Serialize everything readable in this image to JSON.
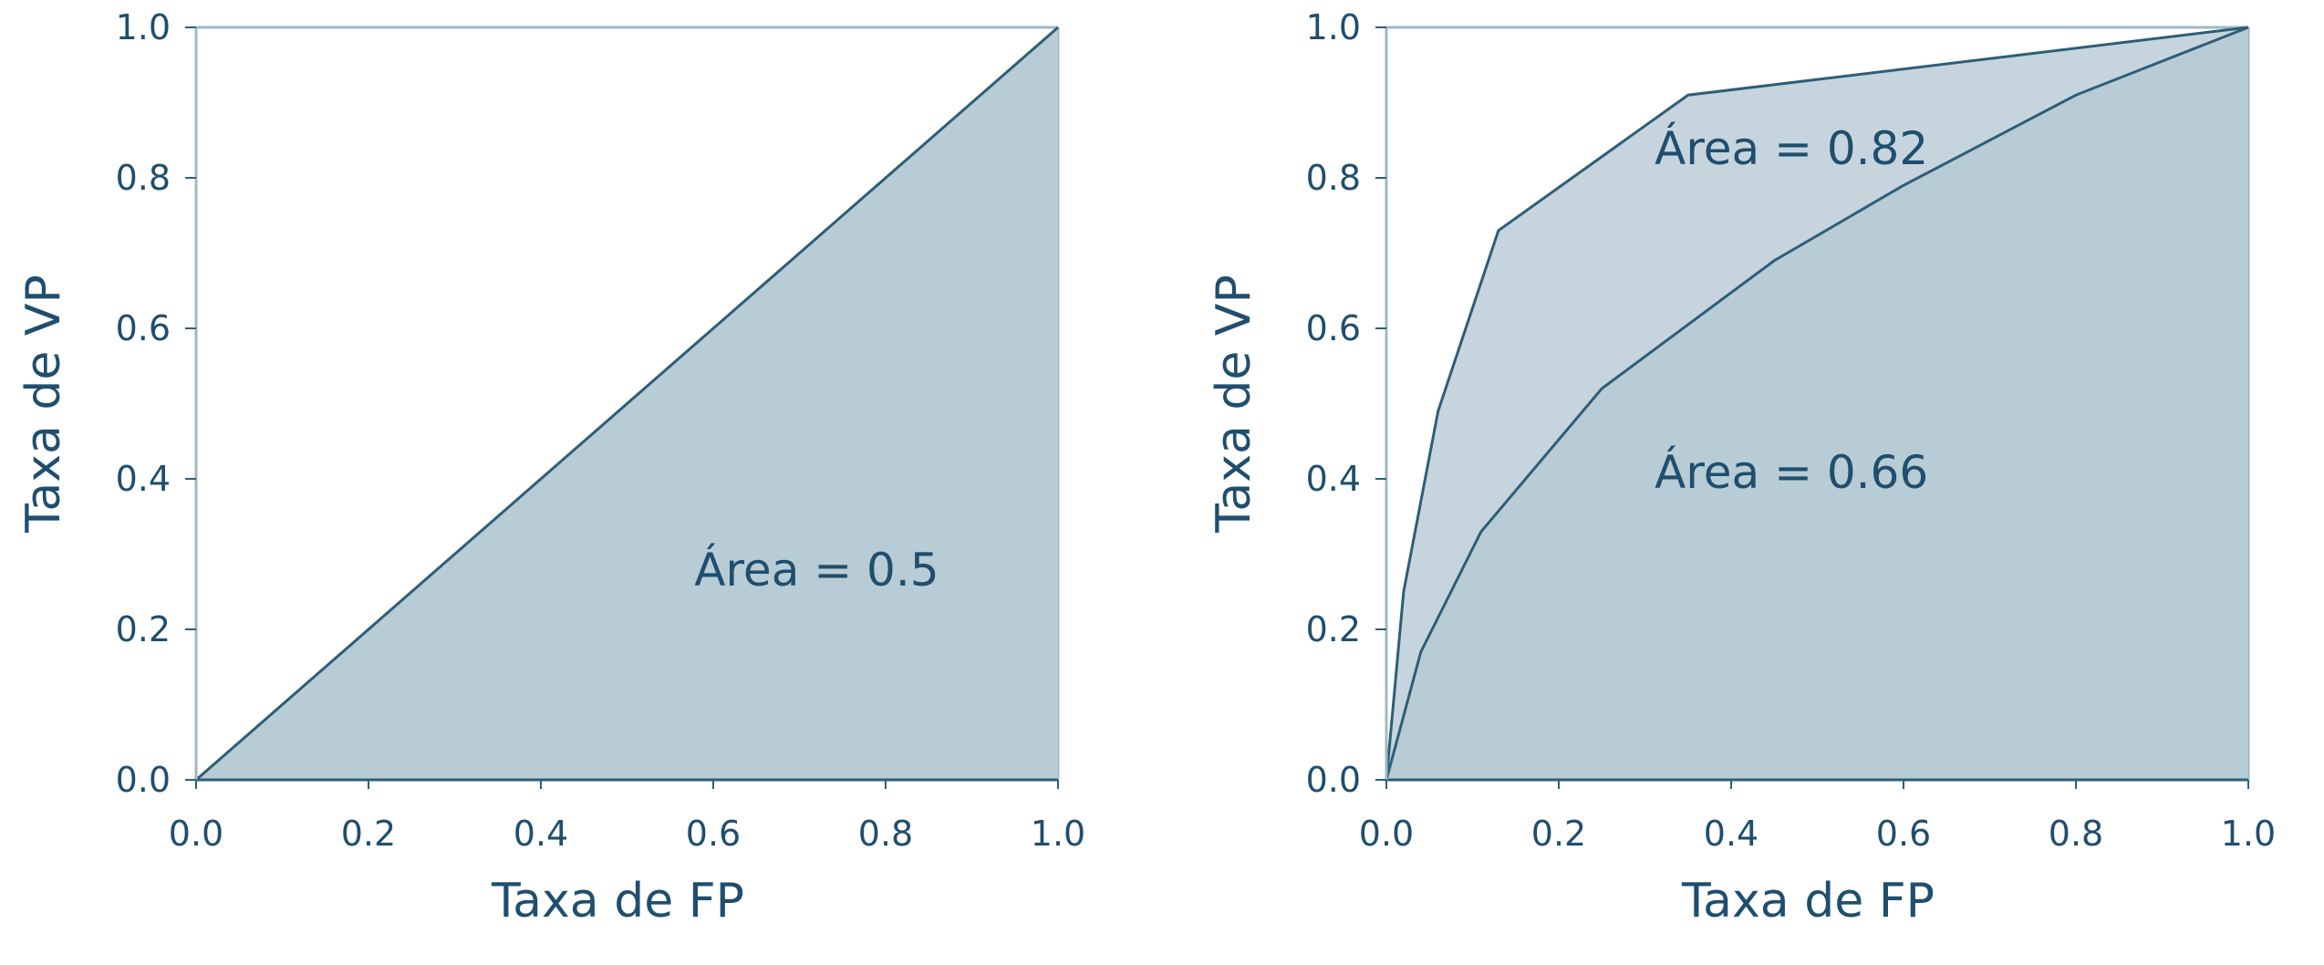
{
  "colors": {
    "axis": "#2e5e78",
    "text": "#1f4e6e",
    "fill_light": "#c6d5dd",
    "fill_dark": "#b8ccd6",
    "frame": "#9fb8c6"
  },
  "chart_data": [
    {
      "type": "area",
      "xlabel": "Taxa de FP",
      "ylabel": "Taxa de VP",
      "xlim": [
        0,
        1
      ],
      "ylim": [
        0,
        1
      ],
      "xticks": [
        "0.0",
        "0.2",
        "0.4",
        "0.6",
        "0.8",
        "1.0"
      ],
      "yticks": [
        "0.0",
        "0.2",
        "0.4",
        "0.6",
        "0.8",
        "1.0"
      ],
      "grid": false,
      "series": [
        {
          "x": [
            0.0,
            1.0
          ],
          "y": [
            0.0,
            1.0
          ]
        }
      ],
      "annotations": [
        {
          "text": "Área = 0.5",
          "x": 0.72,
          "y": 0.28
        }
      ]
    },
    {
      "type": "area",
      "xlabel": "Taxa de FP",
      "ylabel": "Taxa de VP",
      "xlim": [
        0,
        1
      ],
      "ylim": [
        0,
        1
      ],
      "xticks": [
        "0.0",
        "0.2",
        "0.4",
        "0.6",
        "0.8",
        "1.0"
      ],
      "yticks": [
        "0.0",
        "0.2",
        "0.4",
        "0.6",
        "0.8",
        "1.0"
      ],
      "grid": false,
      "series": [
        {
          "x": [
            0.0,
            0.02,
            0.06,
            0.13,
            0.35,
            1.0
          ],
          "y": [
            0.0,
            0.25,
            0.49,
            0.73,
            0.91,
            1.0
          ]
        },
        {
          "x": [
            0.0,
            0.04,
            0.11,
            0.25,
            0.45,
            0.6,
            0.8,
            1.0
          ],
          "y": [
            0.0,
            0.17,
            0.33,
            0.52,
            0.69,
            0.79,
            0.91,
            1.0
          ]
        }
      ],
      "annotations": [
        {
          "text": "Área = 0.82",
          "x": 0.47,
          "y": 0.84
        },
        {
          "text": "Área = 0.66",
          "x": 0.47,
          "y": 0.41
        }
      ]
    }
  ]
}
